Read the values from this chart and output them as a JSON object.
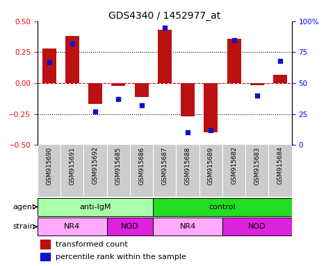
{
  "title": "GDS4340 / 1452977_at",
  "samples": [
    "GSM915690",
    "GSM915691",
    "GSM915692",
    "GSM915685",
    "GSM915686",
    "GSM915687",
    "GSM915688",
    "GSM915689",
    "GSM915682",
    "GSM915683",
    "GSM915684"
  ],
  "transformed_count": [
    0.28,
    0.38,
    -0.17,
    -0.025,
    -0.11,
    0.43,
    -0.27,
    -0.4,
    0.36,
    -0.015,
    0.065
  ],
  "percentile_rank": [
    67,
    82,
    27,
    37,
    32,
    95,
    10,
    12,
    85,
    40,
    68
  ],
  "ylim_left": [
    -0.5,
    0.5
  ],
  "ylim_right": [
    0,
    100
  ],
  "yticks_left": [
    -0.5,
    -0.25,
    0,
    0.25,
    0.5
  ],
  "yticks_right": [
    0,
    25,
    50,
    75,
    100
  ],
  "ytick_labels_right": [
    "0",
    "25",
    "50",
    "75",
    "100%"
  ],
  "hlines_dotted": [
    -0.25,
    0.25
  ],
  "hline_zero_color": "#cc0000",
  "bar_color": "#bb1111",
  "dot_color": "#1111cc",
  "agent_groups": [
    {
      "label": "anti-IgM",
      "start": 0,
      "end": 5,
      "color": "#aaffaa"
    },
    {
      "label": "control",
      "start": 5,
      "end": 11,
      "color": "#22dd22"
    }
  ],
  "strain_groups": [
    {
      "label": "NR4",
      "start": 0,
      "end": 3,
      "color": "#ffaaff"
    },
    {
      "label": "NOD",
      "start": 3,
      "end": 5,
      "color": "#dd22dd"
    },
    {
      "label": "NR4",
      "start": 5,
      "end": 8,
      "color": "#ffaaff"
    },
    {
      "label": "NOD",
      "start": 8,
      "end": 11,
      "color": "#dd22dd"
    }
  ],
  "label_bg": "#cccccc",
  "legend_text1": "transformed count",
  "legend_text2": "percentile rank within the sample",
  "agent_label": "agent",
  "strain_label": "strain"
}
